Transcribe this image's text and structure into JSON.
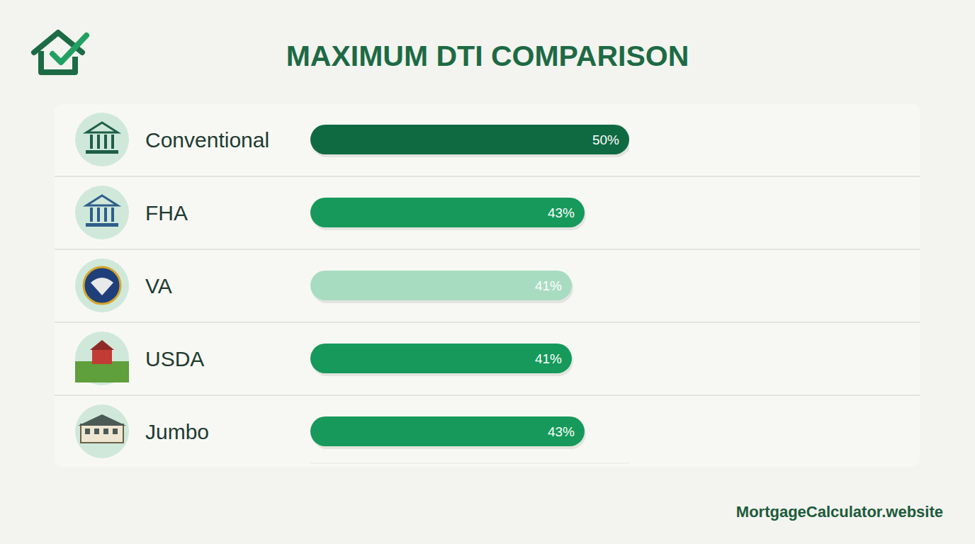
{
  "chart_data": {
    "type": "bar",
    "orientation": "horizontal",
    "title": "MAXIMUM DTI COMPARISON",
    "categories": [
      "Conventional",
      "FHA",
      "VA",
      "USDA",
      "Jumbo"
    ],
    "values": [
      50,
      43,
      41,
      41,
      43
    ],
    "value_labels": [
      "50%",
      "43%",
      "41%",
      "41%",
      "43%"
    ],
    "colors": [
      "#0f6a42",
      "#16995a",
      "#a8dcc1",
      "#16995a",
      "#16995a"
    ],
    "xlim": [
      0,
      50
    ],
    "tick_labels": false,
    "grid": false,
    "data_labels": true,
    "source": "MortgageCalculator.website"
  }
}
